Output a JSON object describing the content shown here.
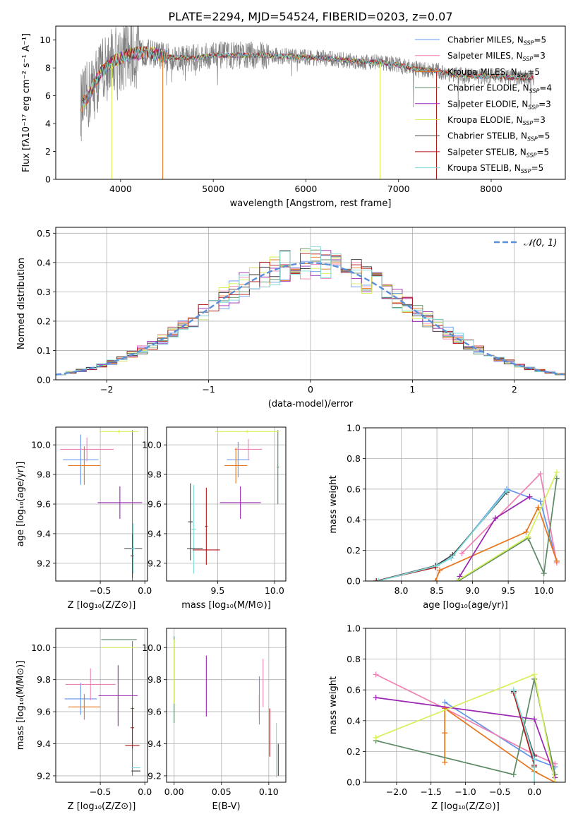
{
  "figure_title": "PLATE=2294, MJD=54524, FIBERID=0203, z=0.07",
  "colors": {
    "chab_miles": "#6495ed",
    "salp_miles": "#ee82b4",
    "krou_miles": "#e8741c",
    "chab_elodie": "#5c8a64",
    "salp_elodie": "#9a27b0",
    "krou_elodie": "#d6f05a",
    "chab_stelib": "#404040",
    "salp_stelib": "#b01818",
    "krou_stelib": "#7fdcdc",
    "data_line": "#808080",
    "normal": "#5b8fd8",
    "grid": "#b0b0b0"
  },
  "legend_models": [
    {
      "key": "chab_miles",
      "imf": "Chabrier",
      "lib": "MILES",
      "n": "5"
    },
    {
      "key": "salp_miles",
      "imf": "Salpeter",
      "lib": "MILES",
      "n": "3"
    },
    {
      "key": "krou_miles",
      "imf": "Kroupa",
      "lib": "MILES",
      "n": "5"
    },
    {
      "key": "chab_elodie",
      "imf": "Chabrier",
      "lib": "ELODIE",
      "n": "4"
    },
    {
      "key": "salp_elodie",
      "imf": "Salpeter",
      "lib": "ELODIE",
      "n": "3"
    },
    {
      "key": "krou_elodie",
      "imf": "Kroupa",
      "lib": "ELODIE",
      "n": "3"
    },
    {
      "key": "chab_stelib",
      "imf": "Chabrier",
      "lib": "STELIB",
      "n": "5"
    },
    {
      "key": "salp_stelib",
      "imf": "Salpeter",
      "lib": "STELIB",
      "n": "5"
    },
    {
      "key": "krou_stelib",
      "imf": "Kroupa",
      "lib": "STELIB",
      "n": "5"
    }
  ],
  "chart_data": [
    {
      "id": "spectrum",
      "type": "line",
      "xlabel": "wavelength [Angstrom, rest frame]",
      "ylabel": "Flux [fλ10⁻¹⁷ erg cm⁻² s⁻¹ A⁻¹]",
      "xlim": [
        3300,
        8800
      ],
      "ylim": [
        0,
        11
      ],
      "xticks": [
        4000,
        5000,
        6000,
        7000,
        8000
      ],
      "yticks": [
        0,
        2,
        4,
        6,
        8,
        10
      ],
      "grid": false,
      "legend": "right",
      "data_range": [
        3570,
        8460
      ],
      "continuum": [
        [
          3570,
          5.2
        ],
        [
          3650,
          6.0
        ],
        [
          3800,
          7.8
        ],
        [
          3950,
          8.6
        ],
        [
          4100,
          9.0
        ],
        [
          4300,
          9.1
        ],
        [
          4500,
          8.8
        ],
        [
          4800,
          8.7
        ],
        [
          5000,
          8.9
        ],
        [
          5300,
          8.9
        ],
        [
          5600,
          8.9
        ],
        [
          5900,
          8.8
        ],
        [
          6200,
          8.7
        ],
        [
          6500,
          8.5
        ],
        [
          6800,
          8.4
        ],
        [
          7000,
          8.2
        ],
        [
          7200,
          7.9
        ],
        [
          7400,
          7.8
        ],
        [
          7600,
          7.5
        ],
        [
          7800,
          7.4
        ],
        [
          8000,
          7.4
        ],
        [
          8200,
          7.3
        ],
        [
          8460,
          7.3
        ]
      ],
      "model_dips": [
        {
          "key": "krou_elodie",
          "x": 3905
        },
        {
          "key": "krou_miles",
          "x": 4455
        },
        {
          "key": "krou_elodie",
          "x": 6800
        },
        {
          "key": "salp_stelib",
          "x": 7410
        }
      ]
    },
    {
      "id": "residuals",
      "type": "histogram",
      "xlabel": "(data-model)/error",
      "ylabel": "Normed distribution",
      "xlim": [
        -2.5,
        2.5
      ],
      "ylim": [
        0,
        0.52
      ],
      "xticks": [
        -2,
        -1,
        0,
        1,
        2
      ],
      "yticks": [
        0.0,
        0.1,
        0.2,
        0.3,
        0.4,
        0.5
      ],
      "grid": true,
      "legend": "top-right",
      "normal_label": "𝒩(0, 1)",
      "bins": 50
    },
    {
      "id": "age_vs_Z",
      "type": "errorbar",
      "xlabel": "Z [log₁₀(Z/Z⊙)]",
      "ylabel": "age  [log₁₀(age/yr)]",
      "xlim": [
        -1.0,
        0.03
      ],
      "ylim": [
        9.08,
        10.12
      ],
      "xticks": [
        -0.5,
        0.0
      ],
      "yticks": [
        9.2,
        9.4,
        9.6,
        9.8,
        10.0
      ],
      "grid": true,
      "points": [
        {
          "key": "chab_miles",
          "x": -0.72,
          "xerr": 0.2,
          "y": 9.9,
          "yerr": 0.17
        },
        {
          "key": "salp_miles",
          "x": -0.65,
          "xerr": 0.3,
          "y": 9.97,
          "yerr": 0.08
        },
        {
          "key": "krou_miles",
          "x": -0.68,
          "xerr": 0.18,
          "y": 9.86,
          "yerr": 0.13
        },
        {
          "key": "chab_elodie",
          "x": -0.14,
          "xerr": 0.02,
          "y": 9.3,
          "yerr": 0.8
        },
        {
          "key": "salp_elodie",
          "x": -0.28,
          "xerr": 0.25,
          "y": 9.61,
          "yerr": 0.11
        },
        {
          "key": "krou_elodie",
          "x": -0.29,
          "xerr": 0.22,
          "y": 10.09,
          "yerr": 0.01
        },
        {
          "key": "chab_stelib",
          "x": -0.13,
          "xerr": 0.1,
          "y": 9.3,
          "yerr": 0.01
        },
        {
          "key": "salp_stelib",
          "x": -0.14,
          "xerr": 0.02,
          "y": 9.25,
          "yerr": 0.15
        },
        {
          "key": "krou_stelib",
          "x": -0.13,
          "xerr": 0.02,
          "y": 9.3,
          "yerr": 0.17
        }
      ]
    },
    {
      "id": "age_vs_mass",
      "type": "errorbar",
      "xlabel": "mass [log₁₀(M/M⊙)]",
      "ylabel": "",
      "xlim": [
        9.05,
        10.1
      ],
      "ylim": [
        9.08,
        10.12
      ],
      "xticks": [
        9.5,
        10.0
      ],
      "yticks": [
        9.2,
        9.4,
        9.6,
        9.8,
        10.0
      ],
      "grid": true,
      "points": [
        {
          "key": "chab_miles",
          "x": 9.68,
          "xerr": 0.1,
          "y": 9.9,
          "yerr": 0.12
        },
        {
          "key": "salp_miles",
          "x": 9.77,
          "xerr": 0.12,
          "y": 9.97,
          "yerr": 0.07
        },
        {
          "key": "krou_miles",
          "x": 9.66,
          "xerr": 0.1,
          "y": 9.86,
          "yerr": 0.12
        },
        {
          "key": "chab_elodie",
          "x": 10.03,
          "xerr": 0.01,
          "y": 9.85,
          "yerr": 0.25
        },
        {
          "key": "salp_elodie",
          "x": 9.7,
          "xerr": 0.18,
          "y": 9.61,
          "yerr": 0.11
        },
        {
          "key": "krou_elodie",
          "x": 9.76,
          "xerr": 0.28,
          "y": 10.09,
          "yerr": 0.01
        },
        {
          "key": "chab_stelib",
          "x": 9.26,
          "xerr": 0.02,
          "y": 9.48,
          "yerr": 0.26
        },
        {
          "key": "salp_stelib",
          "x": 9.4,
          "xerr": 0.01,
          "y": 9.45,
          "yerr": 0.26
        },
        {
          "key": "krou_stelib",
          "x": 9.29,
          "xerr": 0.02,
          "y": 9.43,
          "yerr": 0.3
        },
        {
          "key": "salp_stelib",
          "x": 9.4,
          "xerr": 0.12,
          "y": 9.29,
          "yerr": 0.0
        },
        {
          "key": "chab_stelib",
          "x": 9.3,
          "xerr": 0.07,
          "y": 9.3,
          "yerr": 0.0
        }
      ]
    },
    {
      "id": "mass_vs_Z",
      "type": "errorbar",
      "xlabel": "Z [log₁₀(Z/Z⊙)]",
      "ylabel": "mass [log₁₀(M/M⊙)]",
      "xlim": [
        -1.0,
        0.03
      ],
      "ylim": [
        9.16,
        10.12
      ],
      "xticks": [
        -0.5,
        0.0
      ],
      "yticks": [
        9.2,
        9.4,
        9.6,
        9.8,
        10.0
      ],
      "grid": true,
      "points": [
        {
          "key": "chab_miles",
          "x": -0.72,
          "xerr": 0.18,
          "y": 9.68,
          "yerr": 0.1
        },
        {
          "key": "salp_miles",
          "x": -0.61,
          "xerr": 0.28,
          "y": 9.77,
          "yerr": 0.1
        },
        {
          "key": "krou_miles",
          "x": -0.68,
          "xerr": 0.18,
          "y": 9.63,
          "yerr": 0.08
        },
        {
          "key": "chab_elodie",
          "x": -0.14,
          "xerr": 0.02,
          "y": 9.62,
          "yerr": 0.42
        },
        {
          "key": "salp_elodie",
          "x": -0.3,
          "xerr": 0.22,
          "y": 9.7,
          "yerr": 0.19
        },
        {
          "key": "krou_elodie",
          "x": -0.29,
          "xerr": 0.2,
          "y": 10.0,
          "yerr": 0.0
        },
        {
          "key": "chab_elodie",
          "x": -0.29,
          "xerr": 0.2,
          "y": 10.05,
          "yerr": 0.0
        },
        {
          "key": "chab_stelib",
          "x": -0.1,
          "xerr": 0.05,
          "y": 9.23,
          "yerr": 0.0
        },
        {
          "key": "salp_stelib",
          "x": -0.14,
          "xerr": 0.08,
          "y": 9.39,
          "yerr": 0.0
        },
        {
          "key": "krou_stelib",
          "x": -0.1,
          "xerr": 0.05,
          "y": 9.25,
          "yerr": 0.0
        },
        {
          "key": "salp_stelib",
          "x": -0.14,
          "xerr": 0.02,
          "y": 9.5,
          "yerr": 0.13
        }
      ]
    },
    {
      "id": "mass_vs_EBV",
      "type": "errorbar",
      "xlabel": "E(B-V)",
      "ylabel": "",
      "xlim": [
        -0.008,
        0.118
      ],
      "ylim": [
        9.16,
        10.12
      ],
      "xticks": [
        0.0,
        0.05,
        0.1
      ],
      "yticks": [
        9.2,
        9.4,
        9.6,
        9.8,
        10.0
      ],
      "grid": true,
      "points": [
        {
          "key": "chab_elodie",
          "x": 0.0,
          "xerr": 0.0,
          "y": 9.8,
          "yerr": 0.27
        },
        {
          "key": "krou_elodie",
          "x": 0.0,
          "xerr": 0.0,
          "y": 9.85,
          "yerr": 0.2
        },
        {
          "key": "salp_elodie",
          "x": 0.034,
          "xerr": 0.0,
          "y": 9.76,
          "yerr": 0.19
        },
        {
          "key": "chab_miles",
          "x": 0.09,
          "xerr": 0.0,
          "y": 9.67,
          "yerr": 0.15
        },
        {
          "key": "krou_miles",
          "x": 0.09,
          "xerr": 0.0,
          "y": 9.63,
          "yerr": 0.08
        },
        {
          "key": "salp_miles",
          "x": 0.094,
          "xerr": 0.0,
          "y": 9.78,
          "yerr": 0.15
        },
        {
          "key": "salp_stelib",
          "x": 0.101,
          "xerr": 0.0,
          "y": 9.47,
          "yerr": 0.15
        },
        {
          "key": "krou_stelib",
          "x": 0.108,
          "xerr": 0.0,
          "y": 9.36,
          "yerr": 0.17
        },
        {
          "key": "chab_stelib",
          "x": 0.11,
          "xerr": 0.0,
          "y": 9.3,
          "yerr": 0.1
        }
      ]
    },
    {
      "id": "weight_vs_age",
      "type": "line",
      "xlabel": "age  [log₁₀(age/yr)]",
      "ylabel": "mass weight",
      "xlim": [
        7.5,
        10.3
      ],
      "ylim": [
        0,
        1
      ],
      "xticks": [
        8.0,
        8.5,
        9.0,
        9.5,
        10.0
      ],
      "yticks": [
        0.0,
        0.2,
        0.4,
        0.6,
        0.8,
        1.0
      ],
      "grid": true,
      "series": [
        {
          "key": "chab_miles",
          "x": [
            8.48,
            8.7,
            9.48,
            9.95,
            10.18
          ],
          "y": [
            0.1,
            0.15,
            0.6,
            0.52,
            0.13
          ]
        },
        {
          "key": "salp_miles",
          "x": [
            8.85,
            9.95,
            10.18
          ],
          "y": [
            0.18,
            0.7,
            0.12
          ]
        },
        {
          "key": "krou_miles",
          "x": [
            8.48,
            8.54,
            9.75,
            9.92,
            10.18
          ],
          "y": [
            0.0,
            0.07,
            0.32,
            0.48,
            0.13
          ]
        },
        {
          "key": "chab_elodie",
          "x": [
            8.8,
            9.78,
            10.0,
            10.18
          ],
          "y": [
            0.0,
            0.28,
            0.05,
            0.67
          ]
        },
        {
          "key": "salp_elodie",
          "x": [
            8.82,
            9.32,
            9.8
          ],
          "y": [
            0.03,
            0.41,
            0.55
          ]
        },
        {
          "key": "krou_elodie",
          "x": [
            8.78,
            9.78,
            10.18
          ],
          "y": [
            0.0,
            0.29,
            0.71
          ]
        },
        {
          "key": "chab_stelib",
          "x": [
            7.65,
            8.48,
            8.72,
            9.48
          ],
          "y": [
            0.0,
            0.1,
            0.17,
            0.58
          ]
        },
        {
          "key": "salp_stelib",
          "x": [
            7.65,
            8.48
          ],
          "y": [
            0.0,
            0.09
          ]
        },
        {
          "key": "krou_stelib",
          "x": [
            7.68,
            8.5,
            8.7,
            9.48
          ],
          "y": [
            0.0,
            0.1,
            0.15,
            0.59
          ]
        }
      ]
    },
    {
      "id": "weight_vs_Z",
      "type": "line",
      "xlabel": "Z [log₁₀(Z/Z⊙)]",
      "ylabel": "mass weight",
      "xlim": [
        -2.45,
        0.45
      ],
      "ylim": [
        0,
        1
      ],
      "xticks": [
        -2.0,
        -1.5,
        -1.0,
        -0.5,
        0.0
      ],
      "yticks": [
        0.0,
        0.2,
        0.4,
        0.6,
        0.8,
        1.0
      ],
      "grid": true,
      "series": [
        {
          "key": "chab_miles",
          "x": [
            -1.3,
            0.0,
            0.3
          ],
          "y": [
            0.52,
            0.15,
            0.1
          ]
        },
        {
          "key": "salp_miles",
          "x": [
            -2.3,
            -1.3,
            0.0,
            0.3
          ],
          "y": [
            0.7,
            0.48,
            0.18,
            0.12
          ]
        },
        {
          "key": "krou_miles",
          "x": [
            -1.3,
            -1.3,
            -1.3,
            0.0,
            0.3
          ],
          "y": [
            0.13,
            0.32,
            0.48,
            0.07,
            0.0
          ]
        },
        {
          "key": "chab_elodie",
          "x": [
            -2.3,
            -0.3,
            0.0,
            0.3
          ],
          "y": [
            0.27,
            0.05,
            0.67,
            0.05
          ]
        },
        {
          "key": "salp_elodie",
          "x": [
            -2.3,
            0.0,
            0.3
          ],
          "y": [
            0.55,
            0.41,
            0.03
          ]
        },
        {
          "key": "krou_elodie",
          "x": [
            -2.3,
            0.0,
            0.3
          ],
          "y": [
            0.29,
            0.7,
            0.0
          ]
        },
        {
          "key": "chab_stelib",
          "x": [
            -0.3,
            0.0,
            0.0
          ],
          "y": [
            0.59,
            0.17,
            0.1
          ]
        },
        {
          "key": "salp_stelib",
          "x": [
            -0.3,
            0.0
          ],
          "y": [
            0.58,
            0.11
          ]
        },
        {
          "key": "krou_stelib",
          "x": [
            -0.3,
            0.0,
            0.0
          ],
          "y": [
            0.6,
            0.15,
            0.0
          ]
        }
      ]
    }
  ]
}
